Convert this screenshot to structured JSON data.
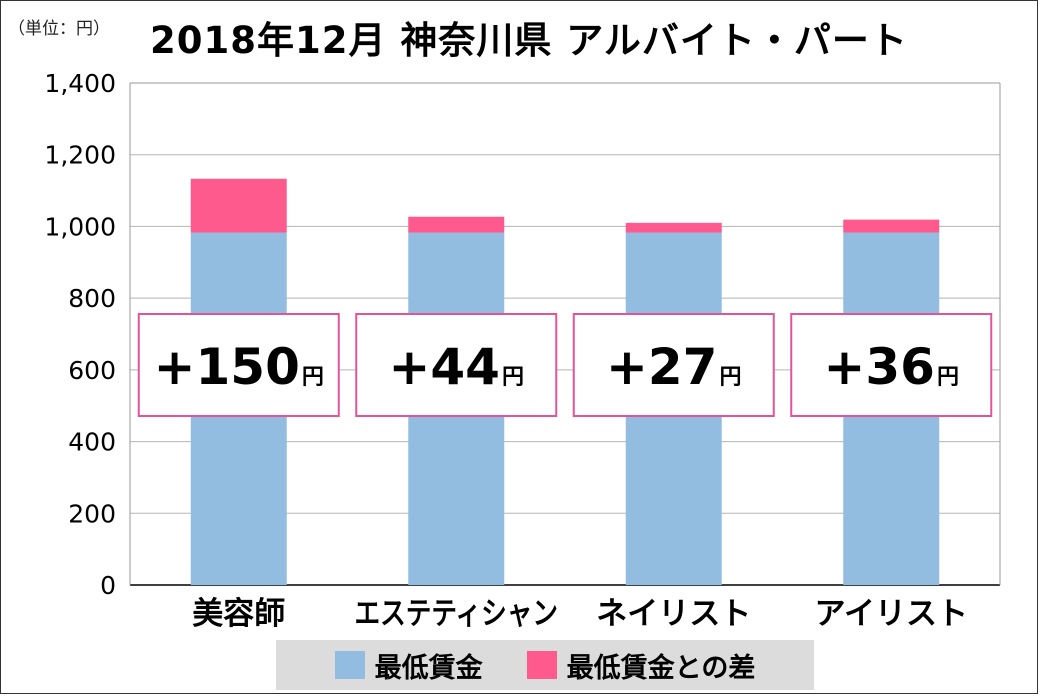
{
  "unit_label": "（単位：円）",
  "title": "2018年12月  神奈川県  アルバイト・パート",
  "colors": {
    "base": "#92bde0",
    "diff": "#ff5a8e",
    "box_border": "#e0559a",
    "grid": "#b5b5b5"
  },
  "legend": [
    {
      "label": "最低賃金",
      "color": "#92bde0"
    },
    {
      "label": "最低賃金との差",
      "color": "#ff5a8e"
    }
  ],
  "chart_data": {
    "type": "bar",
    "stacked": true,
    "categories": [
      "美容師",
      "エステティシャン",
      "ネイリスト",
      "アイリスト"
    ],
    "series": [
      {
        "name": "最低賃金",
        "values": [
          983,
          983,
          983,
          983
        ]
      },
      {
        "name": "最低賃金との差",
        "values": [
          150,
          44,
          27,
          36
        ]
      }
    ],
    "ylim": [
      0,
      1400
    ],
    "yticks": [
      0,
      200,
      400,
      600,
      800,
      1000,
      1200,
      1400
    ],
    "ytick_labels": [
      "0",
      "200",
      "400",
      "600",
      "800",
      "1,000",
      "1,200",
      "1,400"
    ],
    "grid": true,
    "diff_labels": [
      {
        "value": "+150",
        "unit": "円"
      },
      {
        "value": "+44",
        "unit": "円"
      },
      {
        "value": "+27",
        "unit": "円"
      },
      {
        "value": "+36",
        "unit": "円"
      }
    ]
  }
}
